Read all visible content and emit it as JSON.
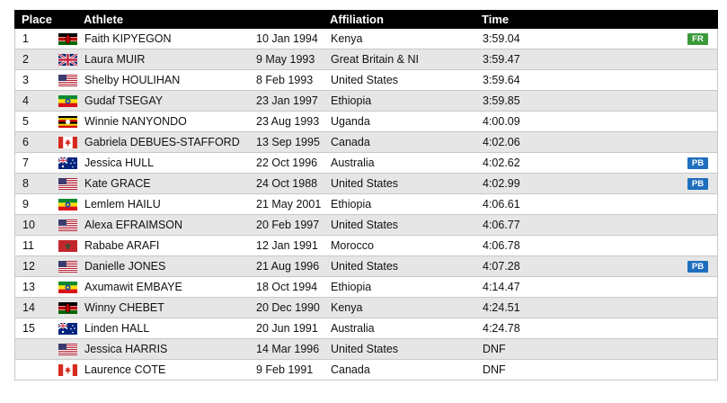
{
  "headers": {
    "place": "Place",
    "athlete": "Athlete",
    "affiliation": "Affiliation",
    "time": "Time"
  },
  "colors": {
    "header_bg": "#000000",
    "row_alt": "#e6e6e6",
    "badge_FR": "#3a9a3a",
    "badge_PB": "#1f6fbf"
  },
  "rows": [
    {
      "place": "1",
      "flag": "KEN",
      "name": "Faith KIPYEGON",
      "dob": "10 Jan 1994",
      "affiliation": "Kenya",
      "time": "3:59.04",
      "badge": "FR"
    },
    {
      "place": "2",
      "flag": "GBR",
      "name": "Laura MUIR",
      "dob": "9 May 1993",
      "affiliation": "Great Britain & NI",
      "time": "3:59.47",
      "badge": ""
    },
    {
      "place": "3",
      "flag": "USA",
      "name": "Shelby HOULIHAN",
      "dob": "8 Feb 1993",
      "affiliation": "United States",
      "time": "3:59.64",
      "badge": ""
    },
    {
      "place": "4",
      "flag": "ETH",
      "name": "Gudaf TSEGAY",
      "dob": "23 Jan 1997",
      "affiliation": "Ethiopia",
      "time": "3:59.85",
      "badge": ""
    },
    {
      "place": "5",
      "flag": "UGA",
      "name": "Winnie NANYONDO",
      "dob": "23 Aug 1993",
      "affiliation": "Uganda",
      "time": "4:00.09",
      "badge": ""
    },
    {
      "place": "6",
      "flag": "CAN",
      "name": "Gabriela DEBUES-STAFFORD",
      "dob": "13 Sep 1995",
      "affiliation": "Canada",
      "time": "4:02.06",
      "badge": ""
    },
    {
      "place": "7",
      "flag": "AUS",
      "name": "Jessica HULL",
      "dob": "22 Oct 1996",
      "affiliation": "Australia",
      "time": "4:02.62",
      "badge": "PB"
    },
    {
      "place": "8",
      "flag": "USA",
      "name": "Kate GRACE",
      "dob": "24 Oct 1988",
      "affiliation": "United States",
      "time": "4:02.99",
      "badge": "PB"
    },
    {
      "place": "9",
      "flag": "ETH",
      "name": "Lemlem HAILU",
      "dob": "21 May 2001",
      "affiliation": "Ethiopia",
      "time": "4:06.61",
      "badge": ""
    },
    {
      "place": "10",
      "flag": "USA",
      "name": "Alexa EFRAIMSON",
      "dob": "20 Feb 1997",
      "affiliation": "United States",
      "time": "4:06.77",
      "badge": ""
    },
    {
      "place": "11",
      "flag": "MAR",
      "name": "Rababe ARAFI",
      "dob": "12 Jan 1991",
      "affiliation": "Morocco",
      "time": "4:06.78",
      "badge": ""
    },
    {
      "place": "12",
      "flag": "USA",
      "name": "Danielle JONES",
      "dob": "21 Aug 1996",
      "affiliation": "United States",
      "time": "4:07.28",
      "badge": "PB"
    },
    {
      "place": "13",
      "flag": "ETH",
      "name": "Axumawit EMBAYE",
      "dob": "18 Oct 1994",
      "affiliation": "Ethiopia",
      "time": "4:14.47",
      "badge": ""
    },
    {
      "place": "14",
      "flag": "KEN",
      "name": "Winny CHEBET",
      "dob": "20 Dec 1990",
      "affiliation": "Kenya",
      "time": "4:24.51",
      "badge": ""
    },
    {
      "place": "15",
      "flag": "AUS",
      "name": "Linden HALL",
      "dob": "20 Jun 1991",
      "affiliation": "Australia",
      "time": "4:24.78",
      "badge": ""
    },
    {
      "place": "",
      "flag": "USA",
      "name": "Jessica HARRIS",
      "dob": "14 Mar 1996",
      "affiliation": "United States",
      "time": "DNF",
      "badge": ""
    },
    {
      "place": "",
      "flag": "CAN",
      "name": "Laurence COTE",
      "dob": "9 Feb 1991",
      "affiliation": "Canada",
      "time": "DNF",
      "badge": ""
    }
  ]
}
